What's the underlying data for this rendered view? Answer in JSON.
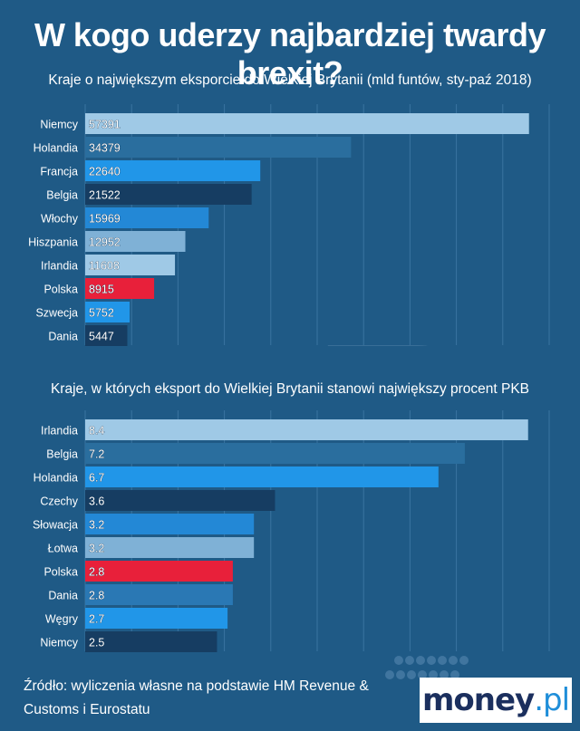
{
  "page": {
    "title": "W kogo uderzy najbardziej twardy brexit?",
    "source": "Źródło: wyliczenia własne na podstawie HM Revenue & Customs i Eurostatu",
    "logo_main": "money",
    "logo_tld": ".pl",
    "decorative_symbol": "£"
  },
  "colors": {
    "background": "#1f5a86",
    "highlight": "#e8203a"
  },
  "chart_data": [
    {
      "type": "bar",
      "orientation": "horizontal",
      "title": "Kraje o największym eksporcie do Wielkiej Brytanii (mld funtów, sty-paź 2018)",
      "categories": [
        "Niemcy",
        "Holandia",
        "Francja",
        "Belgia",
        "Włochy",
        "Hiszpania",
        "Irlandia",
        "Polska",
        "Szwecja",
        "Dania"
      ],
      "values": [
        57391,
        34379,
        22640,
        21522,
        15969,
        12952,
        11608,
        8915,
        5752,
        5447
      ],
      "labels": [
        "57391",
        "34379",
        "22640",
        "21522",
        "15969",
        "12952",
        "11608",
        "8915",
        "5752",
        "5447"
      ],
      "colors": [
        "#9fc9e6",
        "#2a6e9e",
        "#2196e8",
        "#163d62",
        "#2388d6",
        "#7fb1d6",
        "#9fc9e6",
        "#e8203a",
        "#2196e8",
        "#163d62"
      ],
      "xlim": [
        0,
        60000
      ],
      "grid": true
    },
    {
      "type": "bar",
      "orientation": "horizontal",
      "title": "Kraje, w których eksport do Wielkiej Brytanii stanowi największy procent PKB",
      "categories": [
        "Irlandia",
        "Belgia",
        "Holandia",
        "Czechy",
        "Słowacja",
        "Łotwa",
        "Polska",
        "Dania",
        "Węgry",
        "Niemcy"
      ],
      "values": [
        8.4,
        7.2,
        6.7,
        3.6,
        3.2,
        3.2,
        2.8,
        2.8,
        2.7,
        2.5
      ],
      "labels": [
        "8.4",
        "7.2",
        "6.7",
        "3.6",
        "3.2",
        "3.2",
        "2.8",
        "2.8",
        "2.7",
        "2.5"
      ],
      "colors": [
        "#9fc9e6",
        "#2a6e9e",
        "#2196e8",
        "#163d62",
        "#2388d6",
        "#7fb1d6",
        "#e8203a",
        "#2a78b4",
        "#2196e8",
        "#163d62"
      ],
      "xlim": [
        0,
        8.8
      ],
      "grid": true
    }
  ]
}
